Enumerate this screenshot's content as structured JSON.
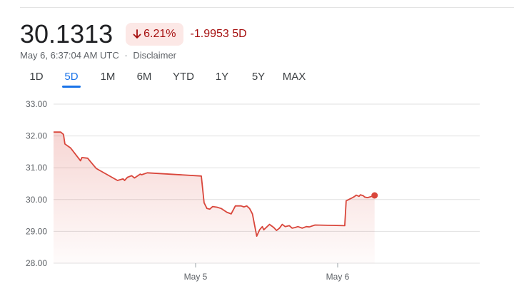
{
  "quote": {
    "price": "30.1313",
    "percent_change": "6.21%",
    "abs_change": "-1.9953 5D",
    "timestamp": "May 6, 6:37:04 AM UTC",
    "separator": "·",
    "disclaimer": "Disclaimer"
  },
  "tabs": [
    {
      "label": "1D",
      "active": false
    },
    {
      "label": "5D",
      "active": true
    },
    {
      "label": "1M",
      "active": false
    },
    {
      "label": "6M",
      "active": false
    },
    {
      "label": "YTD",
      "active": false
    },
    {
      "label": "1Y",
      "active": false
    },
    {
      "label": "5Y",
      "active": false
    },
    {
      "label": "MAX",
      "active": false
    }
  ],
  "colors": {
    "line": "#d9463b",
    "badge_bg": "#fce8e6",
    "negative": "#a50e0e",
    "accent": "#1a73e8",
    "grid": "#e0e0e0"
  },
  "chart_data": {
    "type": "area",
    "ylim": [
      28.0,
      33.0
    ],
    "yticks": [
      "33.00",
      "32.00",
      "31.00",
      "30.00",
      "29.00",
      "28.00"
    ],
    "xlim": [
      0,
      3
    ],
    "xticks": [
      {
        "label": "May 5",
        "x": 1.0
      },
      {
        "label": "May 6",
        "x": 2.0
      }
    ],
    "x": [
      0,
      0.05,
      0.07,
      0.08,
      0.12,
      0.15,
      0.19,
      0.2,
      0.24,
      0.3,
      0.45,
      0.49,
      0.5,
      0.52,
      0.55,
      0.57,
      0.61,
      0.62,
      0.66,
      1.04,
      1.06,
      1.08,
      1.1,
      1.12,
      1.15,
      1.18,
      1.22,
      1.25,
      1.28,
      1.32,
      1.34,
      1.36,
      1.38,
      1.4,
      1.43,
      1.45,
      1.47,
      1.48,
      1.52,
      1.55,
      1.57,
      1.59,
      1.61,
      1.63,
      1.66,
      1.68,
      1.7,
      1.72,
      1.75,
      1.78,
      1.8,
      1.84,
      2.05,
      2.06,
      2.1,
      2.12,
      2.13,
      2.15,
      2.16,
      2.18,
      2.19,
      2.21,
      2.24,
      2.26
    ],
    "y": [
      32.12,
      32.12,
      32.05,
      31.75,
      31.62,
      31.45,
      31.22,
      31.32,
      31.3,
      30.98,
      30.6,
      30.65,
      30.6,
      30.7,
      30.75,
      30.68,
      30.8,
      30.78,
      30.84,
      30.74,
      29.9,
      29.72,
      29.7,
      29.78,
      29.76,
      29.72,
      29.6,
      29.55,
      29.8,
      29.8,
      29.77,
      29.8,
      29.72,
      29.55,
      28.85,
      29.05,
      29.15,
      29.05,
      29.22,
      29.12,
      29.03,
      29.1,
      29.22,
      29.15,
      29.18,
      29.1,
      29.12,
      29.15,
      29.1,
      29.15,
      29.14,
      29.2,
      29.18,
      29.96,
      30.05,
      30.1,
      30.14,
      30.1,
      30.15,
      30.12,
      30.08,
      30.06,
      30.1,
      30.13
    ]
  }
}
